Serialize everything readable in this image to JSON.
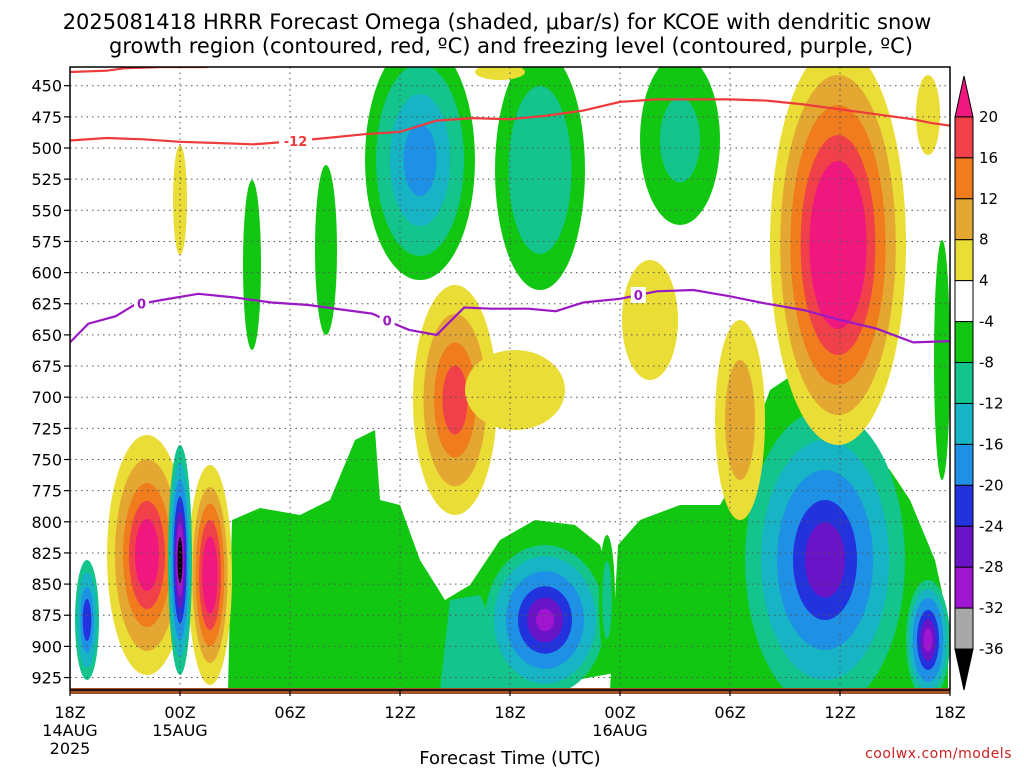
{
  "title": {
    "line1": "2025081418 HRRR Forecast Omega (shaded, μbar/s) for KCOE with dendritic snow",
    "line2": "growth region (contoured, red, ºC) and freezing level (contoured, purple, ºC)"
  },
  "xlabel": "Forecast Time (UTC)",
  "credit": "coolwx.com/models",
  "chart_data": {
    "type": "heatmap",
    "title": "2025081418 HRRR Forecast Omega (shaded, μbar/s) for KCOE with dendritic snow growth region (contoured, red, ºC) and freezing level (contoured, purple, ºC)",
    "xlabel": "Forecast Time (UTC)",
    "ylabel": "",
    "x_range_hours": [
      0,
      48
    ],
    "y_levels_hPa": [
      450,
      475,
      500,
      525,
      550,
      575,
      600,
      625,
      650,
      675,
      700,
      725,
      750,
      775,
      800,
      825,
      850,
      875,
      900,
      925
    ],
    "ylim_hPa": [
      435,
      935
    ],
    "y_axis_inverted": true,
    "grid": true,
    "x_ticks": [
      {
        "hour": 0,
        "label": "18Z",
        "sub": [
          "14AUG",
          "2025"
        ]
      },
      {
        "hour": 6,
        "label": "00Z",
        "sub": [
          "15AUG"
        ]
      },
      {
        "hour": 12,
        "label": "06Z",
        "sub": []
      },
      {
        "hour": 18,
        "label": "12Z",
        "sub": []
      },
      {
        "hour": 24,
        "label": "18Z",
        "sub": []
      },
      {
        "hour": 30,
        "label": "00Z",
        "sub": [
          "16AUG"
        ]
      },
      {
        "hour": 36,
        "label": "06Z",
        "sub": []
      },
      {
        "hour": 42,
        "label": "12Z",
        "sub": []
      },
      {
        "hour": 48,
        "label": "18Z",
        "sub": []
      }
    ],
    "colorbar": {
      "labels": [
        20,
        16,
        12,
        8,
        4,
        -4,
        -8,
        -12,
        -16,
        -20,
        -24,
        -28,
        -32,
        -36
      ],
      "bins": [
        {
          "min": 20,
          "max": null,
          "color": "#f0177f"
        },
        {
          "min": 16,
          "max": 20,
          "color": "#f0404a"
        },
        {
          "min": 12,
          "max": 16,
          "color": "#f07c1e"
        },
        {
          "min": 8,
          "max": 12,
          "color": "#e4a832"
        },
        {
          "min": 4,
          "max": 8,
          "color": "#eadd36"
        },
        {
          "min": -4,
          "max": 4,
          "color": "#ffffff"
        },
        {
          "min": -8,
          "max": -4,
          "color": "#12c712"
        },
        {
          "min": -12,
          "max": -8,
          "color": "#13c48c"
        },
        {
          "min": -16,
          "max": -12,
          "color": "#16b4c4"
        },
        {
          "min": -20,
          "max": -16,
          "color": "#1e90e6"
        },
        {
          "min": -24,
          "max": -20,
          "color": "#2232dc"
        },
        {
          "min": -28,
          "max": -24,
          "color": "#6a14c8"
        },
        {
          "min": -32,
          "max": -28,
          "color": "#a016d0"
        },
        {
          "min": -36,
          "max": -32,
          "color": "#a8a8a8"
        },
        {
          "min": null,
          "max": -36,
          "color": "#000000"
        }
      ]
    },
    "contours": [
      {
        "name": "dendritic growth region",
        "value_C": -12,
        "color": "#ee3b3b",
        "label": "-12",
        "points": [
          [
            0,
            494
          ],
          [
            2,
            492
          ],
          [
            4,
            493
          ],
          [
            6,
            495
          ],
          [
            8,
            496
          ],
          [
            10,
            497
          ],
          [
            11,
            496
          ],
          [
            14,
            492
          ],
          [
            16,
            489
          ],
          [
            18,
            487
          ],
          [
            20,
            478
          ],
          [
            22,
            476
          ],
          [
            24,
            477
          ],
          [
            26,
            474
          ],
          [
            28,
            470
          ],
          [
            30,
            463
          ],
          [
            32,
            461
          ],
          [
            34,
            461
          ],
          [
            36,
            461
          ],
          [
            38,
            462
          ],
          [
            40,
            465
          ],
          [
            42,
            469
          ],
          [
            44,
            473
          ],
          [
            46,
            477
          ],
          [
            47,
            480
          ],
          [
            48,
            482
          ]
        ]
      },
      {
        "name": "dendritic growth region (upper)",
        "value_C": -12,
        "color": "#ee3b3b",
        "points": [
          [
            0,
            439
          ],
          [
            2,
            438
          ],
          [
            3,
            436
          ],
          [
            5,
            435
          ],
          [
            7.5,
            435
          ]
        ]
      },
      {
        "name": "freezing level",
        "value_C": 0,
        "color": "#9b19c4",
        "label": "0",
        "points": [
          [
            0,
            656
          ],
          [
            1,
            641
          ],
          [
            2.5,
            635
          ],
          [
            3.5,
            626
          ],
          [
            5,
            622
          ],
          [
            7,
            617
          ],
          [
            9,
            620
          ],
          [
            11,
            624
          ],
          [
            13,
            626
          ],
          [
            15,
            630
          ],
          [
            16.5,
            633
          ],
          [
            17.5,
            640
          ],
          [
            18.5,
            646
          ],
          [
            20,
            650
          ],
          [
            21.5,
            628
          ],
          [
            23,
            629
          ],
          [
            25,
            629
          ],
          [
            26.5,
            631
          ],
          [
            28,
            624
          ],
          [
            30,
            621
          ],
          [
            32,
            615
          ],
          [
            34,
            614
          ],
          [
            36,
            619
          ],
          [
            38,
            625
          ],
          [
            40,
            630
          ],
          [
            42,
            638
          ],
          [
            44,
            645
          ],
          [
            46,
            656
          ],
          [
            48,
            655
          ]
        ]
      }
    ]
  }
}
